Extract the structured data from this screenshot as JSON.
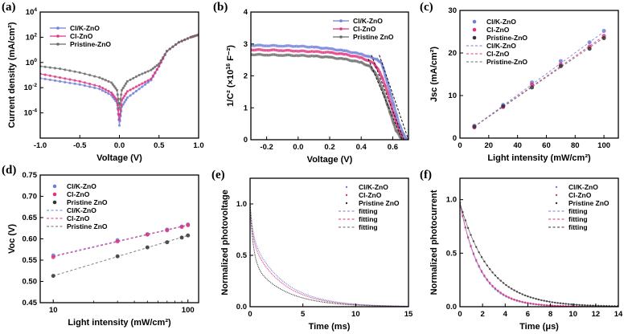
{
  "colors": {
    "clk": "#6f7fd8",
    "cl": "#e0337f",
    "pristine": "#6a6a6a",
    "pristine_dark": "#333333"
  },
  "chart_data": [
    {
      "id": "a",
      "panel_label": "(a)",
      "type": "line",
      "yscale": "log",
      "xlabel": "Voltage (V)",
      "ylabel": "Current density (mA/cm²)",
      "xlim": [
        -1.0,
        1.0
      ],
      "ylim_exp": [
        -6,
        4
      ],
      "xticks": [
        "-1.0",
        "-0.5",
        "0.0",
        "0.5",
        "1.0"
      ],
      "xtick_values": [
        -1.0,
        -0.5,
        0.0,
        0.5,
        1.0
      ],
      "yticks": [
        {
          "base": "10",
          "exp": "4",
          "v": 4
        },
        {
          "base": "10",
          "exp": "2",
          "v": 2
        },
        {
          "base": "10",
          "exp": "0",
          "v": 0
        },
        {
          "base": "10",
          "exp": "-2",
          "v": -2
        },
        {
          "base": "10",
          "exp": "-4",
          "v": -4
        }
      ],
      "legend_position": "top-left",
      "series": [
        {
          "name": "Cl/K-ZnO",
          "color_key": "clk",
          "x": [
            -1.0,
            -0.75,
            -0.5,
            -0.25,
            -0.1,
            -0.03,
            0.0,
            0.03,
            0.1,
            0.25,
            0.4,
            0.5,
            0.6,
            0.75,
            0.9,
            1.0
          ],
          "log10_y": [
            -1.25,
            -1.5,
            -1.75,
            -2.1,
            -2.6,
            -3.2,
            -5.0,
            -3.5,
            -2.8,
            -2.1,
            -1.4,
            -0.3,
            0.9,
            1.6,
            2.0,
            2.2
          ]
        },
        {
          "name": "Cl-ZnO",
          "color_key": "cl",
          "x": [
            -1.0,
            -0.75,
            -0.5,
            -0.25,
            -0.1,
            -0.03,
            0.0,
            0.03,
            0.1,
            0.25,
            0.4,
            0.5,
            0.6,
            0.75,
            0.9,
            1.0
          ],
          "log10_y": [
            -0.9,
            -1.2,
            -1.5,
            -1.9,
            -2.4,
            -3.0,
            -4.5,
            -3.0,
            -2.3,
            -1.8,
            -1.3,
            -0.3,
            0.9,
            1.6,
            2.0,
            2.2
          ]
        },
        {
          "name": "Pristine-ZnO",
          "color_key": "pristine",
          "x": [
            -1.0,
            -0.75,
            -0.5,
            -0.25,
            -0.1,
            -0.03,
            0.0,
            0.03,
            0.1,
            0.25,
            0.4,
            0.5,
            0.6,
            0.75,
            0.9,
            1.0
          ],
          "log10_y": [
            -0.3,
            -0.5,
            -0.8,
            -1.2,
            -1.6,
            -2.2,
            -3.6,
            -2.2,
            -1.5,
            -1.0,
            -0.6,
            -0.1,
            0.9,
            1.6,
            2.0,
            2.2
          ]
        }
      ]
    },
    {
      "id": "b",
      "panel_label": "(b)",
      "type": "line",
      "xlabel": "Voltage (V)",
      "ylabel_main": "1/C² (×10",
      "ylabel_exp": "16",
      "ylabel_tail": " F⁻²)",
      "xlim": [
        -0.3,
        0.7
      ],
      "ylim": [
        0,
        4
      ],
      "xticks": [
        "-0.2",
        "0.0",
        "0.2",
        "0.4",
        "0.6"
      ],
      "xtick_values": [
        -0.2,
        0.0,
        0.2,
        0.4,
        0.6
      ],
      "yticks": [
        "0",
        "1",
        "2",
        "3",
        "4"
      ],
      "ytick_values": [
        0,
        1,
        2,
        3,
        4
      ],
      "legend_position": "top-right",
      "series": [
        {
          "name": "Cl/K-ZnO",
          "color_key": "clk",
          "x": [
            -0.3,
            -0.2,
            -0.1,
            0.0,
            0.1,
            0.2,
            0.3,
            0.4,
            0.5,
            0.53,
            0.56,
            0.6,
            0.64,
            0.68,
            0.7
          ],
          "y": [
            2.96,
            2.95,
            2.94,
            2.93,
            2.9,
            2.85,
            2.78,
            2.68,
            2.52,
            2.4,
            1.9,
            1.2,
            0.5,
            0.05,
            0.0
          ]
        },
        {
          "name": "Cl-ZnO",
          "color_key": "cl",
          "x": [
            -0.3,
            -0.2,
            -0.1,
            0.0,
            0.1,
            0.2,
            0.3,
            0.4,
            0.48,
            0.52,
            0.56,
            0.6,
            0.64,
            0.67
          ],
          "y": [
            2.82,
            2.81,
            2.8,
            2.78,
            2.76,
            2.73,
            2.67,
            2.57,
            2.4,
            2.1,
            1.6,
            0.9,
            0.3,
            0.0
          ]
        },
        {
          "name": "Pristine ZnO",
          "color_key": "pristine",
          "x": [
            -0.3,
            -0.2,
            -0.1,
            0.0,
            0.1,
            0.2,
            0.3,
            0.4,
            0.46,
            0.5,
            0.54,
            0.58,
            0.62,
            0.66
          ],
          "y": [
            2.67,
            2.66,
            2.65,
            2.64,
            2.62,
            2.58,
            2.52,
            2.42,
            2.28,
            2.0,
            1.5,
            0.9,
            0.3,
            0.0
          ]
        }
      ]
    },
    {
      "id": "c",
      "panel_label": "(c)",
      "type": "scatter",
      "xlabel": "Light intensity (mW/cm²)",
      "ylabel": "Jsc (mA/cm²)",
      "xlim": [
        0,
        110
      ],
      "ylim": [
        0,
        30
      ],
      "xticks": [
        "0",
        "20",
        "40",
        "60",
        "80",
        "100"
      ],
      "xtick_values": [
        0,
        20,
        40,
        60,
        80,
        100
      ],
      "yticks": [
        "0",
        "10",
        "20",
        "30"
      ],
      "ytick_values": [
        0,
        10,
        20,
        30
      ],
      "legend_position": "top-left",
      "x": [
        10,
        30,
        50,
        70,
        90,
        100
      ],
      "series": [
        {
          "name": "Cl/K-ZnO",
          "color_key": "clk",
          "y": [
            2.9,
            7.8,
            13.1,
            18.1,
            22.5,
            25.2
          ]
        },
        {
          "name": "Cl-ZnO",
          "color_key": "cl",
          "y": [
            2.5,
            7.3,
            12.6,
            17.3,
            21.5,
            24.0
          ]
        },
        {
          "name": "Pristine-ZnO",
          "color_key": "pristine_dark",
          "y": [
            2.7,
            7.5,
            11.9,
            16.9,
            21.0,
            23.5
          ]
        }
      ],
      "fits": [
        {
          "name": "Cl/K-ZnO",
          "color_key": "clk",
          "y_at": [
            2.7,
            25.0
          ]
        },
        {
          "name": "Cl-ZnO",
          "color_key": "cl",
          "y_at": [
            2.7,
            24.0
          ]
        },
        {
          "name": "Pristine-ZnO",
          "color_key": "pristine",
          "y_at": [
            2.7,
            23.6
          ]
        }
      ]
    },
    {
      "id": "d",
      "panel_label": "(d)",
      "type": "scatter",
      "xscale": "log",
      "xlabel": "Light intensity (mW/cm²)",
      "ylabel": "Voc (V)",
      "xlim": [
        8,
        120
      ],
      "ylim": [
        0.45,
        0.75
      ],
      "xticks": [
        "10",
        "100"
      ],
      "xtick_values": [
        10,
        100
      ],
      "yticks": [
        "0.45",
        "0.50",
        "0.55",
        "0.60",
        "0.65",
        "0.70",
        "0.75"
      ],
      "ytick_values": [
        0.45,
        0.5,
        0.55,
        0.6,
        0.65,
        0.7,
        0.75
      ],
      "legend_position": "top-left",
      "x": [
        10,
        30,
        50,
        70,
        90,
        100
      ],
      "series": [
        {
          "name": "Cl/K-ZnO",
          "color_key": "clk",
          "y": [
            0.561,
            0.597,
            0.611,
            0.622,
            0.629,
            0.634
          ]
        },
        {
          "name": "Cl-ZnO",
          "color_key": "cl",
          "y": [
            0.557,
            0.594,
            0.61,
            0.62,
            0.628,
            0.632
          ]
        },
        {
          "name": "Pristine ZnO",
          "color_key": "pristine_dark",
          "y": [
            0.513,
            0.559,
            0.58,
            0.592,
            0.603,
            0.608
          ]
        }
      ],
      "fits": [
        {
          "name": "Cl/K-ZnO",
          "color_key": "clk",
          "y_at": [
            0.56,
            0.633
          ]
        },
        {
          "name": "Cl-ZnO",
          "color_key": "cl",
          "y_at": [
            0.558,
            0.632
          ]
        },
        {
          "name": "Pristine ZnO",
          "color_key": "pristine",
          "y_at": [
            0.513,
            0.608
          ]
        }
      ]
    },
    {
      "id": "e",
      "panel_label": "(e)",
      "type": "line",
      "xlabel": "Time (ms)",
      "ylabel": "Normalized photovoltage",
      "xlim": [
        0,
        15
      ],
      "ylim": [
        0,
        1.25
      ],
      "xticks": [
        "0",
        "5",
        "10",
        "15"
      ],
      "xtick_values": [
        0,
        5,
        10,
        15
      ],
      "yticks": [
        "0.0",
        "0.5",
        "1.0"
      ],
      "ytick_values": [
        0,
        0.5,
        1.0
      ],
      "legend_position": "top-right",
      "series": [
        {
          "name": "Cl/K-ZnO",
          "color_key": "clk",
          "fast_amp": 0.3,
          "fast_tau": 0.25,
          "slow_amp": 0.7,
          "slow_tau": 3.0
        },
        {
          "name": "Cl-ZnO",
          "color_key": "cl",
          "fast_amp": 0.35,
          "fast_tau": 0.25,
          "slow_amp": 0.65,
          "slow_tau": 2.9
        },
        {
          "name": "Pristine ZnO",
          "color_key": "pristine_dark",
          "fast_amp": 0.55,
          "fast_tau": 0.3,
          "slow_amp": 0.45,
          "slow_tau": 3.0
        }
      ],
      "fit_legend": [
        {
          "name": "fitting",
          "color_key": "clk"
        },
        {
          "name": "fitting",
          "color_key": "cl"
        },
        {
          "name": "fitting",
          "color_key": "pristine"
        }
      ]
    },
    {
      "id": "f",
      "panel_label": "(f)",
      "type": "line",
      "xlabel": "Time (μs)",
      "ylabel": "Normalized photocurrent",
      "xlim": [
        0,
        14
      ],
      "ylim": [
        0,
        1.2
      ],
      "xticks": [
        "0",
        "2",
        "4",
        "6",
        "8",
        "10",
        "12",
        "14"
      ],
      "xtick_values": [
        0,
        2,
        4,
        6,
        8,
        10,
        12,
        14
      ],
      "yticks": [
        "0.0",
        "0.5",
        "1.0"
      ],
      "ytick_values": [
        0,
        0.5,
        1.0
      ],
      "legend_position": "top-right",
      "series": [
        {
          "name": "Cl/K-ZnO",
          "color_key": "clk",
          "amp": 0.97,
          "tau": 1.75
        },
        {
          "name": "Cl-ZnO",
          "color_key": "cl",
          "amp": 0.97,
          "tau": 1.8
        },
        {
          "name": "Pristine ZnO",
          "color_key": "pristine_dark",
          "amp": 0.97,
          "tau": 2.6
        }
      ],
      "fit_legend": [
        {
          "name": "fitting",
          "color_key": "clk"
        },
        {
          "name": "fitting",
          "color_key": "cl"
        },
        {
          "name": "fitting",
          "color_key": "pristine_dark"
        }
      ]
    }
  ]
}
